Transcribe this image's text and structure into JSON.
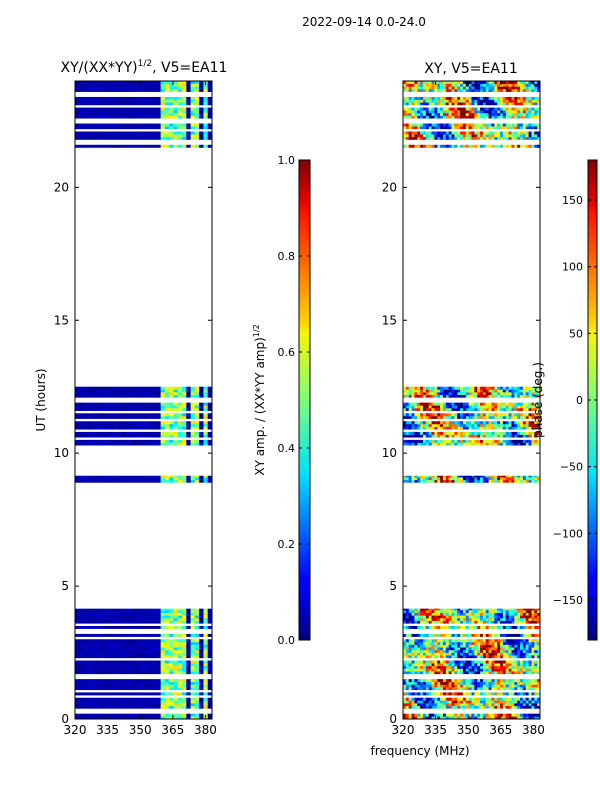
{
  "figure": {
    "suptitle": "2022-09-14 0.0-24.0",
    "shared_xlabel": "frequency (MHz)"
  },
  "chart_data": [
    {
      "type": "heatmap",
      "title_main": "XY/(XX*YY)",
      "title_exp": "1/2",
      "title_suffix": ", V5=EA11",
      "xlabel": "",
      "ylabel": "UT (hours)",
      "xlim": [
        320,
        383
      ],
      "ylim": [
        0,
        24
      ],
      "xticks": [
        320,
        335,
        350,
        365,
        380
      ],
      "yticks": [
        0,
        5,
        10,
        15,
        20
      ],
      "colorbar": {
        "label_main": "XY amp. / (XX*YY amp)",
        "label_exp": "1/2",
        "range": [
          0.0,
          1.0
        ],
        "ticks": [
          "0.0",
          "0.2",
          "0.4",
          "0.6",
          "0.8",
          "1.0"
        ],
        "tick_values": [
          0.0,
          0.2,
          0.4,
          0.6,
          0.8,
          1.0
        ]
      },
      "data_time_ranges_hours": [
        [
          0.0,
          4.15
        ],
        [
          8.9,
          9.15
        ],
        [
          10.3,
          12.5
        ],
        [
          21.5,
          24.0
        ]
      ],
      "gap_rows_hours": [
        0.3,
        0.85,
        1.05,
        1.6,
        2.25,
        3.05,
        3.3,
        3.55,
        10.55,
        10.85,
        11.25,
        11.55,
        12.0,
        21.7,
        22.15,
        22.5,
        23.05,
        23.5
      ],
      "high_value_channels_mhz": [
        [
          359,
          364
        ],
        [
          365,
          368
        ],
        [
          370,
          371
        ],
        [
          373,
          377
        ],
        [
          379,
          380
        ]
      ]
    },
    {
      "type": "heatmap",
      "title_main": "XY, V5=EA11",
      "xlabel": "",
      "ylabel": "",
      "xlim": [
        320,
        383
      ],
      "ylim": [
        0,
        24
      ],
      "xticks": [
        320,
        335,
        350,
        365,
        380
      ],
      "yticks": [
        0,
        5,
        10,
        15,
        20
      ],
      "colorbar": {
        "label_main": "phase (deg.)",
        "range": [
          -180,
          180
        ],
        "ticks": [
          "−150",
          "−100",
          "−50",
          "0",
          "50",
          "100",
          "150"
        ],
        "tick_values": [
          -150,
          -100,
          -50,
          0,
          50,
          100,
          150
        ]
      },
      "data_time_ranges_hours": [
        [
          0.0,
          4.15
        ],
        [
          8.9,
          9.15
        ],
        [
          10.3,
          12.5
        ],
        [
          21.5,
          24.0
        ]
      ],
      "gap_rows_hours": [
        0.3,
        0.85,
        1.05,
        1.6,
        2.25,
        3.05,
        3.3,
        3.55,
        10.55,
        10.85,
        11.25,
        11.55,
        12.0,
        21.7,
        22.15,
        22.5,
        23.05,
        23.5
      ]
    }
  ]
}
